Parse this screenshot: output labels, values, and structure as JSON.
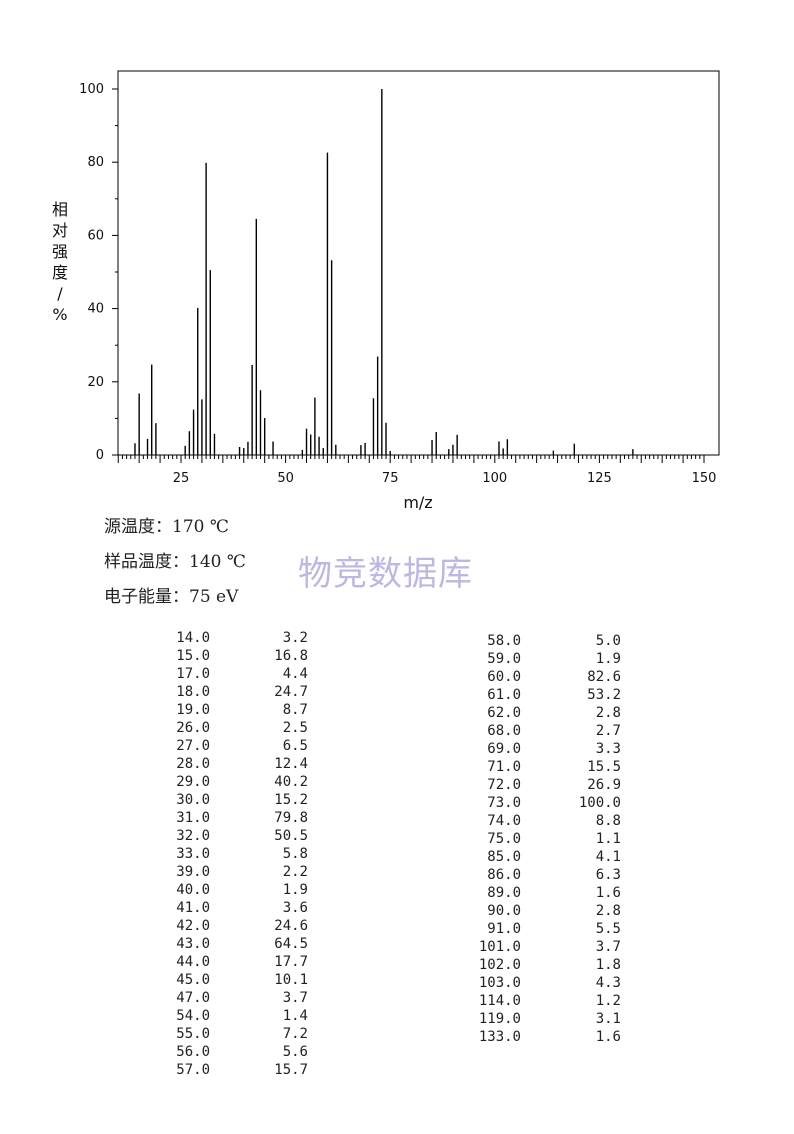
{
  "chart_data": {
    "type": "bar",
    "ylabel": "相对强度/%",
    "xlabel": "m/z",
    "xlim": [
      10,
      150
    ],
    "ylim": [
      0,
      100
    ],
    "x_ticks": [
      "25",
      "50",
      "75",
      "100",
      "125",
      "150"
    ],
    "y_ticks": [
      "0",
      "20",
      "40",
      "60",
      "80",
      "100"
    ],
    "grid": false,
    "peaks": [
      {
        "mz": 14.0,
        "intensity": 3.2
      },
      {
        "mz": 15.0,
        "intensity": 16.8
      },
      {
        "mz": 17.0,
        "intensity": 4.4
      },
      {
        "mz": 18.0,
        "intensity": 24.7
      },
      {
        "mz": 19.0,
        "intensity": 8.7
      },
      {
        "mz": 26.0,
        "intensity": 2.5
      },
      {
        "mz": 27.0,
        "intensity": 6.5
      },
      {
        "mz": 28.0,
        "intensity": 12.4
      },
      {
        "mz": 29.0,
        "intensity": 40.2
      },
      {
        "mz": 30.0,
        "intensity": 15.2
      },
      {
        "mz": 31.0,
        "intensity": 79.8
      },
      {
        "mz": 32.0,
        "intensity": 50.5
      },
      {
        "mz": 33.0,
        "intensity": 5.8
      },
      {
        "mz": 39.0,
        "intensity": 2.2
      },
      {
        "mz": 40.0,
        "intensity": 1.9
      },
      {
        "mz": 41.0,
        "intensity": 3.6
      },
      {
        "mz": 42.0,
        "intensity": 24.6
      },
      {
        "mz": 43.0,
        "intensity": 64.5
      },
      {
        "mz": 44.0,
        "intensity": 17.7
      },
      {
        "mz": 45.0,
        "intensity": 10.1
      },
      {
        "mz": 47.0,
        "intensity": 3.7
      },
      {
        "mz": 54.0,
        "intensity": 1.4
      },
      {
        "mz": 55.0,
        "intensity": 7.2
      },
      {
        "mz": 56.0,
        "intensity": 5.6
      },
      {
        "mz": 57.0,
        "intensity": 15.7
      },
      {
        "mz": 58.0,
        "intensity": 5.0
      },
      {
        "mz": 59.0,
        "intensity": 1.9
      },
      {
        "mz": 60.0,
        "intensity": 82.6
      },
      {
        "mz": 61.0,
        "intensity": 53.2
      },
      {
        "mz": 62.0,
        "intensity": 2.8
      },
      {
        "mz": 68.0,
        "intensity": 2.7
      },
      {
        "mz": 69.0,
        "intensity": 3.3
      },
      {
        "mz": 71.0,
        "intensity": 15.5
      },
      {
        "mz": 72.0,
        "intensity": 26.9
      },
      {
        "mz": 73.0,
        "intensity": 100.0
      },
      {
        "mz": 74.0,
        "intensity": 8.8
      },
      {
        "mz": 75.0,
        "intensity": 1.1
      },
      {
        "mz": 85.0,
        "intensity": 4.1
      },
      {
        "mz": 86.0,
        "intensity": 6.3
      },
      {
        "mz": 89.0,
        "intensity": 1.6
      },
      {
        "mz": 90.0,
        "intensity": 2.8
      },
      {
        "mz": 91.0,
        "intensity": 5.5
      },
      {
        "mz": 101.0,
        "intensity": 3.7
      },
      {
        "mz": 102.0,
        "intensity": 1.8
      },
      {
        "mz": 103.0,
        "intensity": 4.3
      },
      {
        "mz": 114.0,
        "intensity": 1.2
      },
      {
        "mz": 119.0,
        "intensity": 3.1
      },
      {
        "mz": 133.0,
        "intensity": 1.6
      }
    ]
  },
  "conditions": {
    "source_temp": "源温度：170 ℃",
    "sample_temp": "样品温度：140 ℃",
    "electron_energy": "电子能量：75 eV"
  },
  "watermark": "物竞数据库",
  "peak_table": {
    "left": [
      [
        "14.0",
        "3.2"
      ],
      [
        "15.0",
        "16.8"
      ],
      [
        "17.0",
        "4.4"
      ],
      [
        "18.0",
        "24.7"
      ],
      [
        "19.0",
        "8.7"
      ],
      [
        "26.0",
        "2.5"
      ],
      [
        "27.0",
        "6.5"
      ],
      [
        "28.0",
        "12.4"
      ],
      [
        "29.0",
        "40.2"
      ],
      [
        "30.0",
        "15.2"
      ],
      [
        "31.0",
        "79.8"
      ],
      [
        "32.0",
        "50.5"
      ],
      [
        "33.0",
        "5.8"
      ],
      [
        "39.0",
        "2.2"
      ],
      [
        "40.0",
        "1.9"
      ],
      [
        "41.0",
        "3.6"
      ],
      [
        "42.0",
        "24.6"
      ],
      [
        "43.0",
        "64.5"
      ],
      [
        "44.0",
        "17.7"
      ],
      [
        "45.0",
        "10.1"
      ],
      [
        "47.0",
        "3.7"
      ],
      [
        "54.0",
        "1.4"
      ],
      [
        "55.0",
        "7.2"
      ],
      [
        "56.0",
        "5.6"
      ],
      [
        "57.0",
        "15.7"
      ]
    ],
    "right": [
      [
        "58.0",
        "5.0"
      ],
      [
        "59.0",
        "1.9"
      ],
      [
        "60.0",
        "82.6"
      ],
      [
        "61.0",
        "53.2"
      ],
      [
        "62.0",
        "2.8"
      ],
      [
        "68.0",
        "2.7"
      ],
      [
        "69.0",
        "3.3"
      ],
      [
        "71.0",
        "15.5"
      ],
      [
        "72.0",
        "26.9"
      ],
      [
        "73.0",
        "100.0"
      ],
      [
        "74.0",
        "8.8"
      ],
      [
        "75.0",
        "1.1"
      ],
      [
        "85.0",
        "4.1"
      ],
      [
        "86.0",
        "6.3"
      ],
      [
        "89.0",
        "1.6"
      ],
      [
        "90.0",
        "2.8"
      ],
      [
        "91.0",
        "5.5"
      ],
      [
        "101.0",
        "3.7"
      ],
      [
        "102.0",
        "1.8"
      ],
      [
        "103.0",
        "4.3"
      ],
      [
        "114.0",
        "1.2"
      ],
      [
        "119.0",
        "3.1"
      ],
      [
        "133.0",
        "1.6"
      ]
    ]
  }
}
